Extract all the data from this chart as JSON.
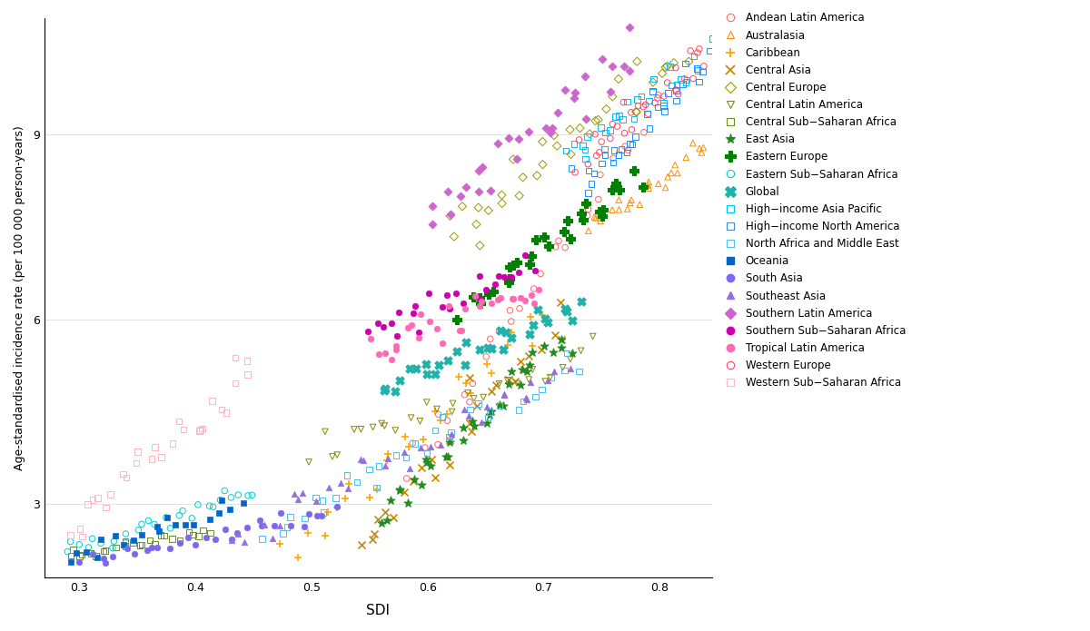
{
  "xlabel": "SDI",
  "ylabel": "Age-standardised incidence rate (per 100 000 person-years)",
  "xlim": [
    0.27,
    0.845
  ],
  "ylim": [
    1.8,
    10.9
  ],
  "yticks": [
    3,
    6,
    9
  ],
  "xticks": [
    0.3,
    0.4,
    0.5,
    0.6,
    0.7,
    0.8
  ],
  "regions": [
    {
      "name": "Andean Latin America",
      "color": "#FF6666",
      "marker": "o",
      "filled": false,
      "sdi": [
        0.58,
        0.8
      ],
      "asir": [
        3.5,
        9.5
      ],
      "n": 30,
      "noise_sdi": 0.004,
      "noise_asir": 0.15
    },
    {
      "name": "Australasia",
      "color": "#FF8C00",
      "marker": "^",
      "filled": false,
      "sdi": [
        0.74,
        0.84
      ],
      "asir": [
        7.5,
        8.8
      ],
      "n": 25,
      "noise_sdi": 0.003,
      "noise_asir": 0.12
    },
    {
      "name": "Caribbean",
      "color": "#FFA500",
      "marker": "+",
      "filled": true,
      "sdi": [
        0.48,
        0.7
      ],
      "asir": [
        2.2,
        6.0
      ],
      "n": 28,
      "noise_sdi": 0.004,
      "noise_asir": 0.18
    },
    {
      "name": "Central Asia",
      "color": "#CC8800",
      "marker": "x",
      "filled": true,
      "sdi": [
        0.54,
        0.72
      ],
      "asir": [
        2.3,
        6.0
      ],
      "n": 28,
      "noise_sdi": 0.004,
      "noise_asir": 0.18
    },
    {
      "name": "Central Europe",
      "color": "#999900",
      "marker": "D",
      "filled": false,
      "sdi": [
        0.62,
        0.82
      ],
      "asir": [
        7.5,
        10.3
      ],
      "n": 35,
      "noise_sdi": 0.004,
      "noise_asir": 0.22
    },
    {
      "name": "Central Latin America",
      "color": "#888800",
      "marker": "v",
      "filled": false,
      "sdi": [
        0.5,
        0.74
      ],
      "asir": [
        3.8,
        5.5
      ],
      "n": 30,
      "noise_sdi": 0.004,
      "noise_asir": 0.15
    },
    {
      "name": "Central Sub-Saharan Africa",
      "color": "#6B8E23",
      "marker": "s",
      "filled": false,
      "sdi": [
        0.29,
        0.41
      ],
      "asir": [
        2.15,
        2.55
      ],
      "n": 25,
      "noise_sdi": 0.003,
      "noise_asir": 0.04
    },
    {
      "name": "East Asia",
      "color": "#228B22",
      "marker": "*",
      "filled": true,
      "sdi": [
        0.56,
        0.72
      ],
      "asir": [
        2.9,
        5.8
      ],
      "n": 35,
      "noise_sdi": 0.003,
      "noise_asir": 0.15
    },
    {
      "name": "Eastern Europe",
      "color": "#008000",
      "marker": "P",
      "filled": true,
      "sdi": [
        0.63,
        0.78
      ],
      "asir": [
        6.2,
        8.4
      ],
      "n": 30,
      "noise_sdi": 0.003,
      "noise_asir": 0.15
    },
    {
      "name": "Eastern Sub-Saharan Africa",
      "color": "#00CED1",
      "marker": "o",
      "filled": false,
      "sdi": [
        0.29,
        0.45
      ],
      "asir": [
        2.2,
        3.2
      ],
      "n": 28,
      "noise_sdi": 0.003,
      "noise_asir": 0.07
    },
    {
      "name": "Global",
      "color": "#20B2AA",
      "marker": "X",
      "filled": true,
      "sdi": [
        0.56,
        0.73
      ],
      "asir": [
        4.8,
        6.3
      ],
      "n": 30,
      "noise_sdi": 0.003,
      "noise_asir": 0.1
    },
    {
      "name": "High-income Asia Pacific",
      "color": "#00BFFF",
      "marker": "s",
      "filled": false,
      "sdi": [
        0.72,
        0.84
      ],
      "asir": [
        8.6,
        10.3
      ],
      "n": 30,
      "noise_sdi": 0.003,
      "noise_asir": 0.15
    },
    {
      "name": "High-income North America",
      "color": "#1E90FF",
      "marker": "s",
      "filled": false,
      "sdi": [
        0.73,
        0.84
      ],
      "asir": [
        8.2,
        10.1
      ],
      "n": 30,
      "noise_sdi": 0.003,
      "noise_asir": 0.15
    },
    {
      "name": "North Africa and Middle East",
      "color": "#4DBEEE",
      "marker": "s",
      "filled": false,
      "sdi": [
        0.46,
        0.73
      ],
      "asir": [
        2.5,
        5.3
      ],
      "n": 35,
      "noise_sdi": 0.004,
      "noise_asir": 0.15
    },
    {
      "name": "Oceania",
      "color": "#0066CC",
      "marker": "s",
      "filled": true,
      "sdi": [
        0.29,
        0.44
      ],
      "asir": [
        2.1,
        3.0
      ],
      "n": 20,
      "noise_sdi": 0.003,
      "noise_asir": 0.08
    },
    {
      "name": "South Asia",
      "color": "#7B68EE",
      "marker": "o",
      "filled": true,
      "sdi": [
        0.3,
        0.52
      ],
      "asir": [
        2.0,
        2.9
      ],
      "n": 30,
      "noise_sdi": 0.003,
      "noise_asir": 0.07
    },
    {
      "name": "Southeast Asia",
      "color": "#9370DB",
      "marker": "^",
      "filled": true,
      "sdi": [
        0.43,
        0.72
      ],
      "asir": [
        2.5,
        5.1
      ],
      "n": 35,
      "noise_sdi": 0.004,
      "noise_asir": 0.15
    },
    {
      "name": "Southern Latin America",
      "color": "#CC66CC",
      "marker": "D",
      "filled": true,
      "sdi": [
        0.6,
        0.78
      ],
      "asir": [
        7.5,
        10.5
      ],
      "n": 30,
      "noise_sdi": 0.004,
      "noise_asir": 0.22
    },
    {
      "name": "Southern Sub-Saharan Africa",
      "color": "#CC00AA",
      "marker": "o",
      "filled": true,
      "sdi": [
        0.55,
        0.69
      ],
      "asir": [
        5.8,
        6.8
      ],
      "n": 25,
      "noise_sdi": 0.003,
      "noise_asir": 0.12
    },
    {
      "name": "Tropical Latin America",
      "color": "#FF69B4",
      "marker": "o",
      "filled": true,
      "sdi": [
        0.55,
        0.7
      ],
      "asir": [
        5.5,
        6.5
      ],
      "n": 30,
      "noise_sdi": 0.003,
      "noise_asir": 0.12
    },
    {
      "name": "Western Europe",
      "color": "#FF4466",
      "marker": "o",
      "filled": false,
      "sdi": [
        0.73,
        0.84
      ],
      "asir": [
        8.6,
        10.2
      ],
      "n": 30,
      "noise_sdi": 0.003,
      "noise_asir": 0.15
    },
    {
      "name": "Western Sub-Saharan Africa",
      "color": "#FFB6C1",
      "marker": "s",
      "filled": false,
      "sdi": [
        0.29,
        0.45
      ],
      "asir": [
        2.5,
        5.2
      ],
      "n": 28,
      "noise_sdi": 0.004,
      "noise_asir": 0.15
    }
  ]
}
